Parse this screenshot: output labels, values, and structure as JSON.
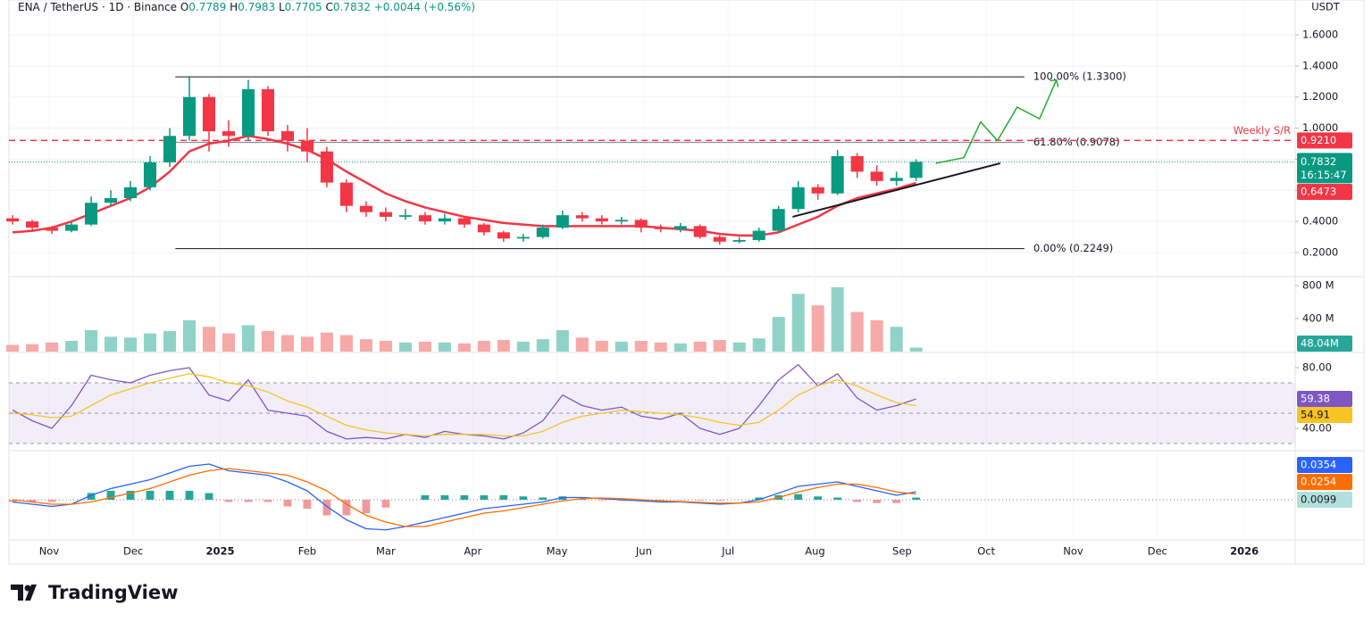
{
  "header": {
    "symbol": "ENA / TetherUS · 1D · Binance",
    "ohlc_labels": [
      "O",
      "H",
      "L",
      "C"
    ],
    "open": 0.7789,
    "high": 0.7983,
    "low": 0.7705,
    "close": 0.7832,
    "change": "+0.0044 (+0.56%)"
  },
  "footer": {
    "brand": "TradingView"
  },
  "chart_data": [
    {
      "type": "candlestick",
      "currency": "USDT",
      "x": [
        -13,
        -6,
        1,
        8,
        15,
        22,
        29,
        36,
        43,
        50,
        57,
        64,
        71,
        78,
        85,
        92,
        99,
        106,
        113,
        120,
        127,
        134,
        141,
        148,
        155,
        162,
        169,
        176,
        183,
        190,
        197,
        204,
        211,
        218,
        225,
        232,
        239,
        246,
        253,
        260,
        267,
        274,
        281,
        288,
        295,
        302,
        309
      ],
      "xlim": [
        -14.3,
        444.1
      ],
      "xticks": [
        {
          "value": 0,
          "label": "Nov"
        },
        {
          "value": 30,
          "label": "Dec"
        },
        {
          "value": 61,
          "label": "2025"
        },
        {
          "value": 92,
          "label": "Feb"
        },
        {
          "value": 120,
          "label": "Mar"
        },
        {
          "value": 151,
          "label": "Apr"
        },
        {
          "value": 181,
          "label": "May"
        },
        {
          "value": 212,
          "label": "Jun"
        },
        {
          "value": 242,
          "label": "Jul"
        },
        {
          "value": 273,
          "label": "Aug"
        },
        {
          "value": 304,
          "label": "Sep"
        },
        {
          "value": 334,
          "label": "Oct"
        },
        {
          "value": 365,
          "label": "Nov"
        },
        {
          "value": 395,
          "label": "Dec"
        },
        {
          "value": 426,
          "label": "2026"
        }
      ],
      "ylim": [
        0.045,
        1.824
      ],
      "yticks": [
        {
          "value": 0.2,
          "label": "0.2000"
        },
        {
          "value": 0.4,
          "label": "0.4000"
        },
        {
          "value": 0.6,
          "label": "0.6000"
        },
        {
          "value": 0.8,
          "label": "0.8000"
        },
        {
          "value": 1.0,
          "label": "1.0000"
        },
        {
          "value": 1.2,
          "label": "1.2000"
        },
        {
          "value": 1.4,
          "label": "1.4000"
        },
        {
          "value": 1.6,
          "label": "1.6000"
        }
      ],
      "grid": true,
      "up_color": "#089981",
      "down_color": "#f23645",
      "open": [
        0.42,
        0.4,
        0.36,
        0.34,
        0.38,
        0.52,
        0.55,
        0.62,
        0.78,
        0.95,
        1.2,
        0.98,
        0.95,
        1.25,
        0.98,
        0.92,
        0.85,
        0.65,
        0.5,
        0.46,
        0.43,
        0.44,
        0.4,
        0.42,
        0.38,
        0.33,
        0.29,
        0.3,
        0.36,
        0.44,
        0.42,
        0.4,
        0.41,
        0.36,
        0.35,
        0.37,
        0.3,
        0.27,
        0.28,
        0.34,
        0.48,
        0.62,
        0.58,
        0.82,
        0.72,
        0.66,
        0.68
      ],
      "high": [
        0.44,
        0.41,
        0.37,
        0.4,
        0.56,
        0.6,
        0.66,
        0.82,
        1.0,
        1.33,
        1.22,
        1.05,
        1.31,
        1.27,
        1.02,
        1.0,
        0.88,
        0.67,
        0.53,
        0.49,
        0.48,
        0.46,
        0.45,
        0.43,
        0.39,
        0.34,
        0.32,
        0.38,
        0.47,
        0.46,
        0.44,
        0.43,
        0.42,
        0.38,
        0.39,
        0.38,
        0.31,
        0.3,
        0.36,
        0.5,
        0.66,
        0.64,
        0.86,
        0.84,
        0.76,
        0.72,
        0.8
      ],
      "low": [
        0.38,
        0.34,
        0.32,
        0.33,
        0.37,
        0.5,
        0.53,
        0.6,
        0.75,
        0.92,
        0.85,
        0.88,
        0.92,
        0.95,
        0.85,
        0.78,
        0.62,
        0.46,
        0.43,
        0.4,
        0.41,
        0.38,
        0.38,
        0.36,
        0.31,
        0.27,
        0.27,
        0.29,
        0.35,
        0.4,
        0.38,
        0.38,
        0.33,
        0.33,
        0.33,
        0.29,
        0.25,
        0.26,
        0.27,
        0.33,
        0.46,
        0.54,
        0.57,
        0.68,
        0.63,
        0.63,
        0.66
      ],
      "close": [
        0.4,
        0.36,
        0.34,
        0.38,
        0.52,
        0.55,
        0.62,
        0.78,
        0.95,
        1.2,
        0.98,
        0.95,
        1.25,
        0.98,
        0.92,
        0.85,
        0.65,
        0.5,
        0.46,
        0.43,
        0.44,
        0.4,
        0.42,
        0.38,
        0.33,
        0.29,
        0.3,
        0.36,
        0.44,
        0.42,
        0.4,
        0.41,
        0.36,
        0.35,
        0.37,
        0.3,
        0.27,
        0.28,
        0.34,
        0.48,
        0.62,
        0.58,
        0.82,
        0.72,
        0.66,
        0.68,
        0.7832
      ],
      "ema": {
        "color": "#f23645",
        "values": [
          0.33,
          0.34,
          0.36,
          0.4,
          0.45,
          0.5,
          0.55,
          0.62,
          0.72,
          0.85,
          0.9,
          0.92,
          0.95,
          0.93,
          0.9,
          0.86,
          0.8,
          0.72,
          0.65,
          0.58,
          0.53,
          0.49,
          0.46,
          0.43,
          0.41,
          0.39,
          0.38,
          0.37,
          0.37,
          0.37,
          0.37,
          0.37,
          0.37,
          0.36,
          0.35,
          0.34,
          0.32,
          0.31,
          0.31,
          0.33,
          0.38,
          0.43,
          0.5,
          0.55,
          0.58,
          0.61,
          0.6473
        ]
      },
      "fib_x": [
        45,
        347.6
      ],
      "fib_levels": [
        {
          "value": 1.33,
          "label": "100.00% (1.3300)"
        },
        {
          "value": 0.9078,
          "label": "61.80% (0.9078)"
        },
        {
          "value": 0.2249,
          "label": "0.00% (0.2249)"
        }
      ],
      "resistance": {
        "text": "Weekly S/R",
        "value": 0.921,
        "value_label": "0.9210",
        "color": "#f23645"
      },
      "countdown": "16:15:47",
      "trendline": {
        "x": [
          265,
          339
        ],
        "y": [
          0.43,
          0.774
        ],
        "color": "#131722"
      },
      "projection": {
        "x": [
          316,
          326,
          332,
          338,
          345,
          353,
          359
        ],
        "y": [
          0.774,
          0.81,
          1.04,
          0.92,
          1.135,
          1.06,
          1.31
        ],
        "color": "#22ab2e"
      }
    },
    {
      "type": "bar",
      "ylim": [
        -11,
        908
      ],
      "yticks": [
        {
          "value": 400,
          "label": "400 M"
        },
        {
          "value": 800,
          "label": "800 M"
        }
      ],
      "up_color": "#8fd3c8",
      "down_color": "#f7a9a7",
      "tag_color": "#26a69a",
      "values": [
        80,
        90,
        110,
        130,
        260,
        180,
        170,
        220,
        250,
        380,
        300,
        220,
        320,
        250,
        200,
        180,
        230,
        200,
        150,
        130,
        110,
        120,
        110,
        100,
        130,
        140,
        120,
        150,
        260,
        170,
        130,
        120,
        130,
        110,
        100,
        120,
        140,
        110,
        160,
        420,
        700,
        560,
        780,
        480,
        380,
        300,
        48.04
      ],
      "last_value_label": "48.04M"
    },
    {
      "type": "line",
      "ylim": [
        25.3,
        90
      ],
      "yticks": [
        {
          "value": 40,
          "label": "40.00"
        },
        {
          "value": 80,
          "label": "80.00"
        }
      ],
      "levels": [
        30,
        50,
        70
      ],
      "band_color": "#7e57c2",
      "series": [
        {
          "color": "#7e57c2",
          "values": [
            52,
            45,
            40,
            55,
            75,
            72,
            70,
            75,
            78,
            80,
            62,
            58,
            72,
            52,
            50,
            48,
            38,
            33,
            34,
            33,
            36,
            34,
            38,
            36,
            35,
            33,
            37,
            45,
            62,
            55,
            52,
            54,
            48,
            46,
            50,
            40,
            36,
            40,
            55,
            72,
            82,
            68,
            76,
            60,
            52,
            55,
            59.38
          ]
        },
        {
          "color": "#f7c325",
          "values": [
            50,
            49,
            47,
            48,
            55,
            62,
            66,
            70,
            73,
            76,
            74,
            70,
            68,
            64,
            58,
            54,
            48,
            42,
            39,
            37,
            36,
            35,
            36,
            36,
            36,
            35,
            35,
            38,
            44,
            48,
            50,
            52,
            51,
            50,
            49,
            47,
            44,
            42,
            44,
            52,
            62,
            68,
            72,
            68,
            62,
            57,
            54.91
          ]
        }
      ]
    },
    {
      "type": "macd",
      "ylim": [
        -0.18,
        0.22
      ],
      "series": [
        {
          "color": "#2962ff",
          "values": [
            -0.01,
            -0.02,
            -0.03,
            -0.02,
            0.02,
            0.05,
            0.07,
            0.09,
            0.12,
            0.15,
            0.16,
            0.13,
            0.12,
            0.11,
            0.08,
            0.04,
            -0.03,
            -0.09,
            -0.13,
            -0.135,
            -0.12,
            -0.1,
            -0.08,
            -0.06,
            -0.04,
            -0.03,
            -0.02,
            -0.01,
            0.01,
            0.01,
            0.005,
            0,
            -0.005,
            -0.01,
            -0.01,
            -0.015,
            -0.02,
            -0.015,
            0,
            0.03,
            0.06,
            0.07,
            0.08,
            0.06,
            0.04,
            0.02,
            0.0354
          ]
        },
        {
          "color": "#ff6d00",
          "values": [
            0,
            -0.01,
            -0.02,
            -0.02,
            -0.01,
            0.01,
            0.03,
            0.05,
            0.08,
            0.11,
            0.13,
            0.14,
            0.13,
            0.12,
            0.11,
            0.08,
            0.04,
            -0.02,
            -0.07,
            -0.1,
            -0.12,
            -0.12,
            -0.1,
            -0.08,
            -0.06,
            -0.05,
            -0.035,
            -0.02,
            -0.005,
            0.005,
            0.008,
            0.005,
            0,
            -0.005,
            -0.008,
            -0.012,
            -0.015,
            -0.015,
            -0.01,
            0.01,
            0.035,
            0.055,
            0.07,
            0.07,
            0.055,
            0.035,
            0.0254
          ]
        }
      ],
      "histogram": {
        "up_color": "#26a69a",
        "down_color": "#ef9a9a",
        "tag_color": "#b2dfdb",
        "values": [
          -0.01,
          -0.01,
          -0.01,
          0,
          0.03,
          0.04,
          0.04,
          0.04,
          0.04,
          0.04,
          0.03,
          -0.01,
          -0.01,
          -0.01,
          -0.03,
          -0.04,
          -0.07,
          -0.07,
          -0.06,
          -0.035,
          0,
          0.02,
          0.02,
          0.02,
          0.02,
          0.02,
          0.015,
          0.01,
          0.015,
          0.005,
          -0.003,
          -0.005,
          -0.005,
          -0.005,
          -0.002,
          -0.003,
          -0.005,
          0,
          0.01,
          0.02,
          0.025,
          0.015,
          0.01,
          -0.01,
          -0.015,
          -0.015,
          0.0099
        ]
      }
    }
  ]
}
